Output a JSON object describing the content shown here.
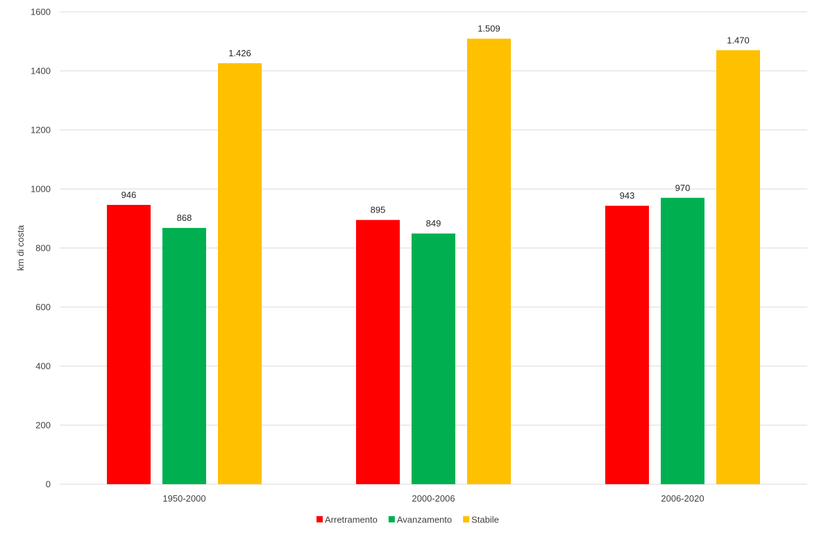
{
  "chart_data": {
    "type": "bar",
    "categories": [
      "1950-2000",
      "2000-2006",
      "2006-2020"
    ],
    "series": [
      {
        "name": "Arretramento",
        "color": "#ff0000",
        "values": [
          946,
          895,
          943
        ],
        "labels": [
          "946",
          "895",
          "943"
        ]
      },
      {
        "name": "Avanzamento",
        "color": "#00b050",
        "values": [
          868,
          849,
          970
        ],
        "labels": [
          "868",
          "849",
          "970"
        ]
      },
      {
        "name": "Stabile",
        "color": "#ffc000",
        "values": [
          1426,
          1509,
          1470
        ],
        "labels": [
          "1.426",
          "1.509",
          "1.470"
        ]
      }
    ],
    "ylabel": "km di costa",
    "ylim": [
      0,
      1600
    ],
    "yticks": [
      "0",
      "200",
      "400",
      "600",
      "800",
      "1000",
      "1200",
      "1400",
      "1600"
    ],
    "ytick_values": [
      0,
      200,
      400,
      600,
      800,
      1000,
      1200,
      1400,
      1600
    ],
    "grid": true,
    "legend_position": "bottom",
    "gridline_color": "#d9d9d9"
  }
}
